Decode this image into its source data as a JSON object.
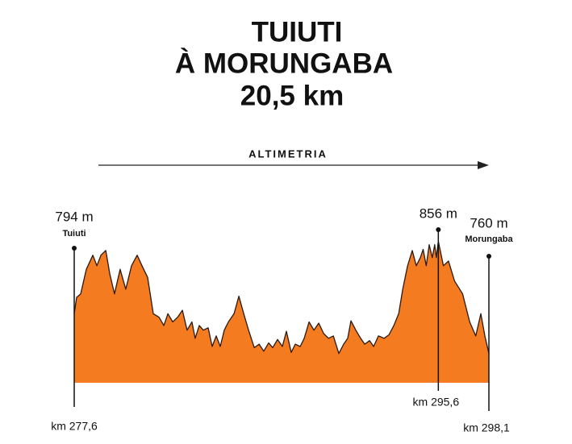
{
  "chart_data": {
    "type": "area",
    "title": [
      "TUIUTI",
      "À MORUNGABA",
      "20,5 km"
    ],
    "subtitle": "ALTIMETRIA",
    "x": [
      277.6,
      277.72,
      277.92,
      278.2,
      278.52,
      278.72,
      278.92,
      279.16,
      279.36,
      279.59,
      279.87,
      280.15,
      280.43,
      280.71,
      280.95,
      281.23,
      281.51,
      281.79,
      282.03,
      282.23,
      282.47,
      282.71,
      282.95,
      283.18,
      283.42,
      283.58,
      283.78,
      283.98,
      284.22,
      284.42,
      284.62,
      284.82,
      285.02,
      285.22,
      285.5,
      285.74,
      285.98,
      286.22,
      286.5,
      286.74,
      286.97,
      287.21,
      287.41,
      287.65,
      287.89,
      288.09,
      288.33,
      288.53,
      288.77,
      288.97,
      289.21,
      289.45,
      289.69,
      289.93,
      290.17,
      290.41,
      290.68,
      290.92,
      291.12,
      291.28,
      291.52,
      291.76,
      291.96,
      292.2,
      292.4,
      292.64,
      292.92,
      293.16,
      293.4,
      293.64,
      293.84,
      294.08,
      294.31,
      294.51,
      294.71,
      294.85,
      295.0,
      295.15,
      295.3,
      295.42,
      295.5,
      295.6,
      295.85,
      296.1,
      296.4,
      296.8,
      297.15,
      297.45,
      297.7,
      297.9,
      298.1
    ],
    "series": [
      {
        "color": "#f47b20",
        "values": [
          794,
          808,
          811,
          832,
          844,
          835,
          844,
          848,
          828,
          811,
          832,
          815,
          835,
          844,
          835,
          825,
          794,
          791,
          784,
          794,
          787,
          791,
          797,
          780,
          787,
          773,
          784,
          780,
          782,
          766,
          775,
          766,
          780,
          787,
          794,
          809,
          794,
          780,
          765,
          768,
          762,
          769,
          765,
          772,
          766,
          779,
          761,
          768,
          766,
          773,
          787,
          780,
          786,
          777,
          773,
          775,
          760,
          768,
          773,
          788,
          780,
          773,
          768,
          771,
          766,
          775,
          773,
          776,
          784,
          794,
          815,
          835,
          848,
          835,
          842,
          849,
          835,
          853,
          842,
          853,
          842,
          856,
          835,
          839,
          822,
          811,
          787,
          775,
          794,
          775,
          760
        ]
      }
    ],
    "xlim": [
      277.6,
      298.1
    ],
    "ylim": [
      735,
      870
    ],
    "markers": [
      {
        "km": 277.6,
        "km_label": "km 277,6",
        "elevation": 794,
        "elevation_label": "794 m",
        "place": "Tuiuti"
      },
      {
        "km": 295.6,
        "km_label": "km 295,6",
        "elevation": 856,
        "elevation_label": "856 m"
      },
      {
        "km": 298.1,
        "km_label": "km 298,1",
        "elevation": 760,
        "elevation_label": "760 m",
        "place": "Morungaba"
      }
    ]
  }
}
